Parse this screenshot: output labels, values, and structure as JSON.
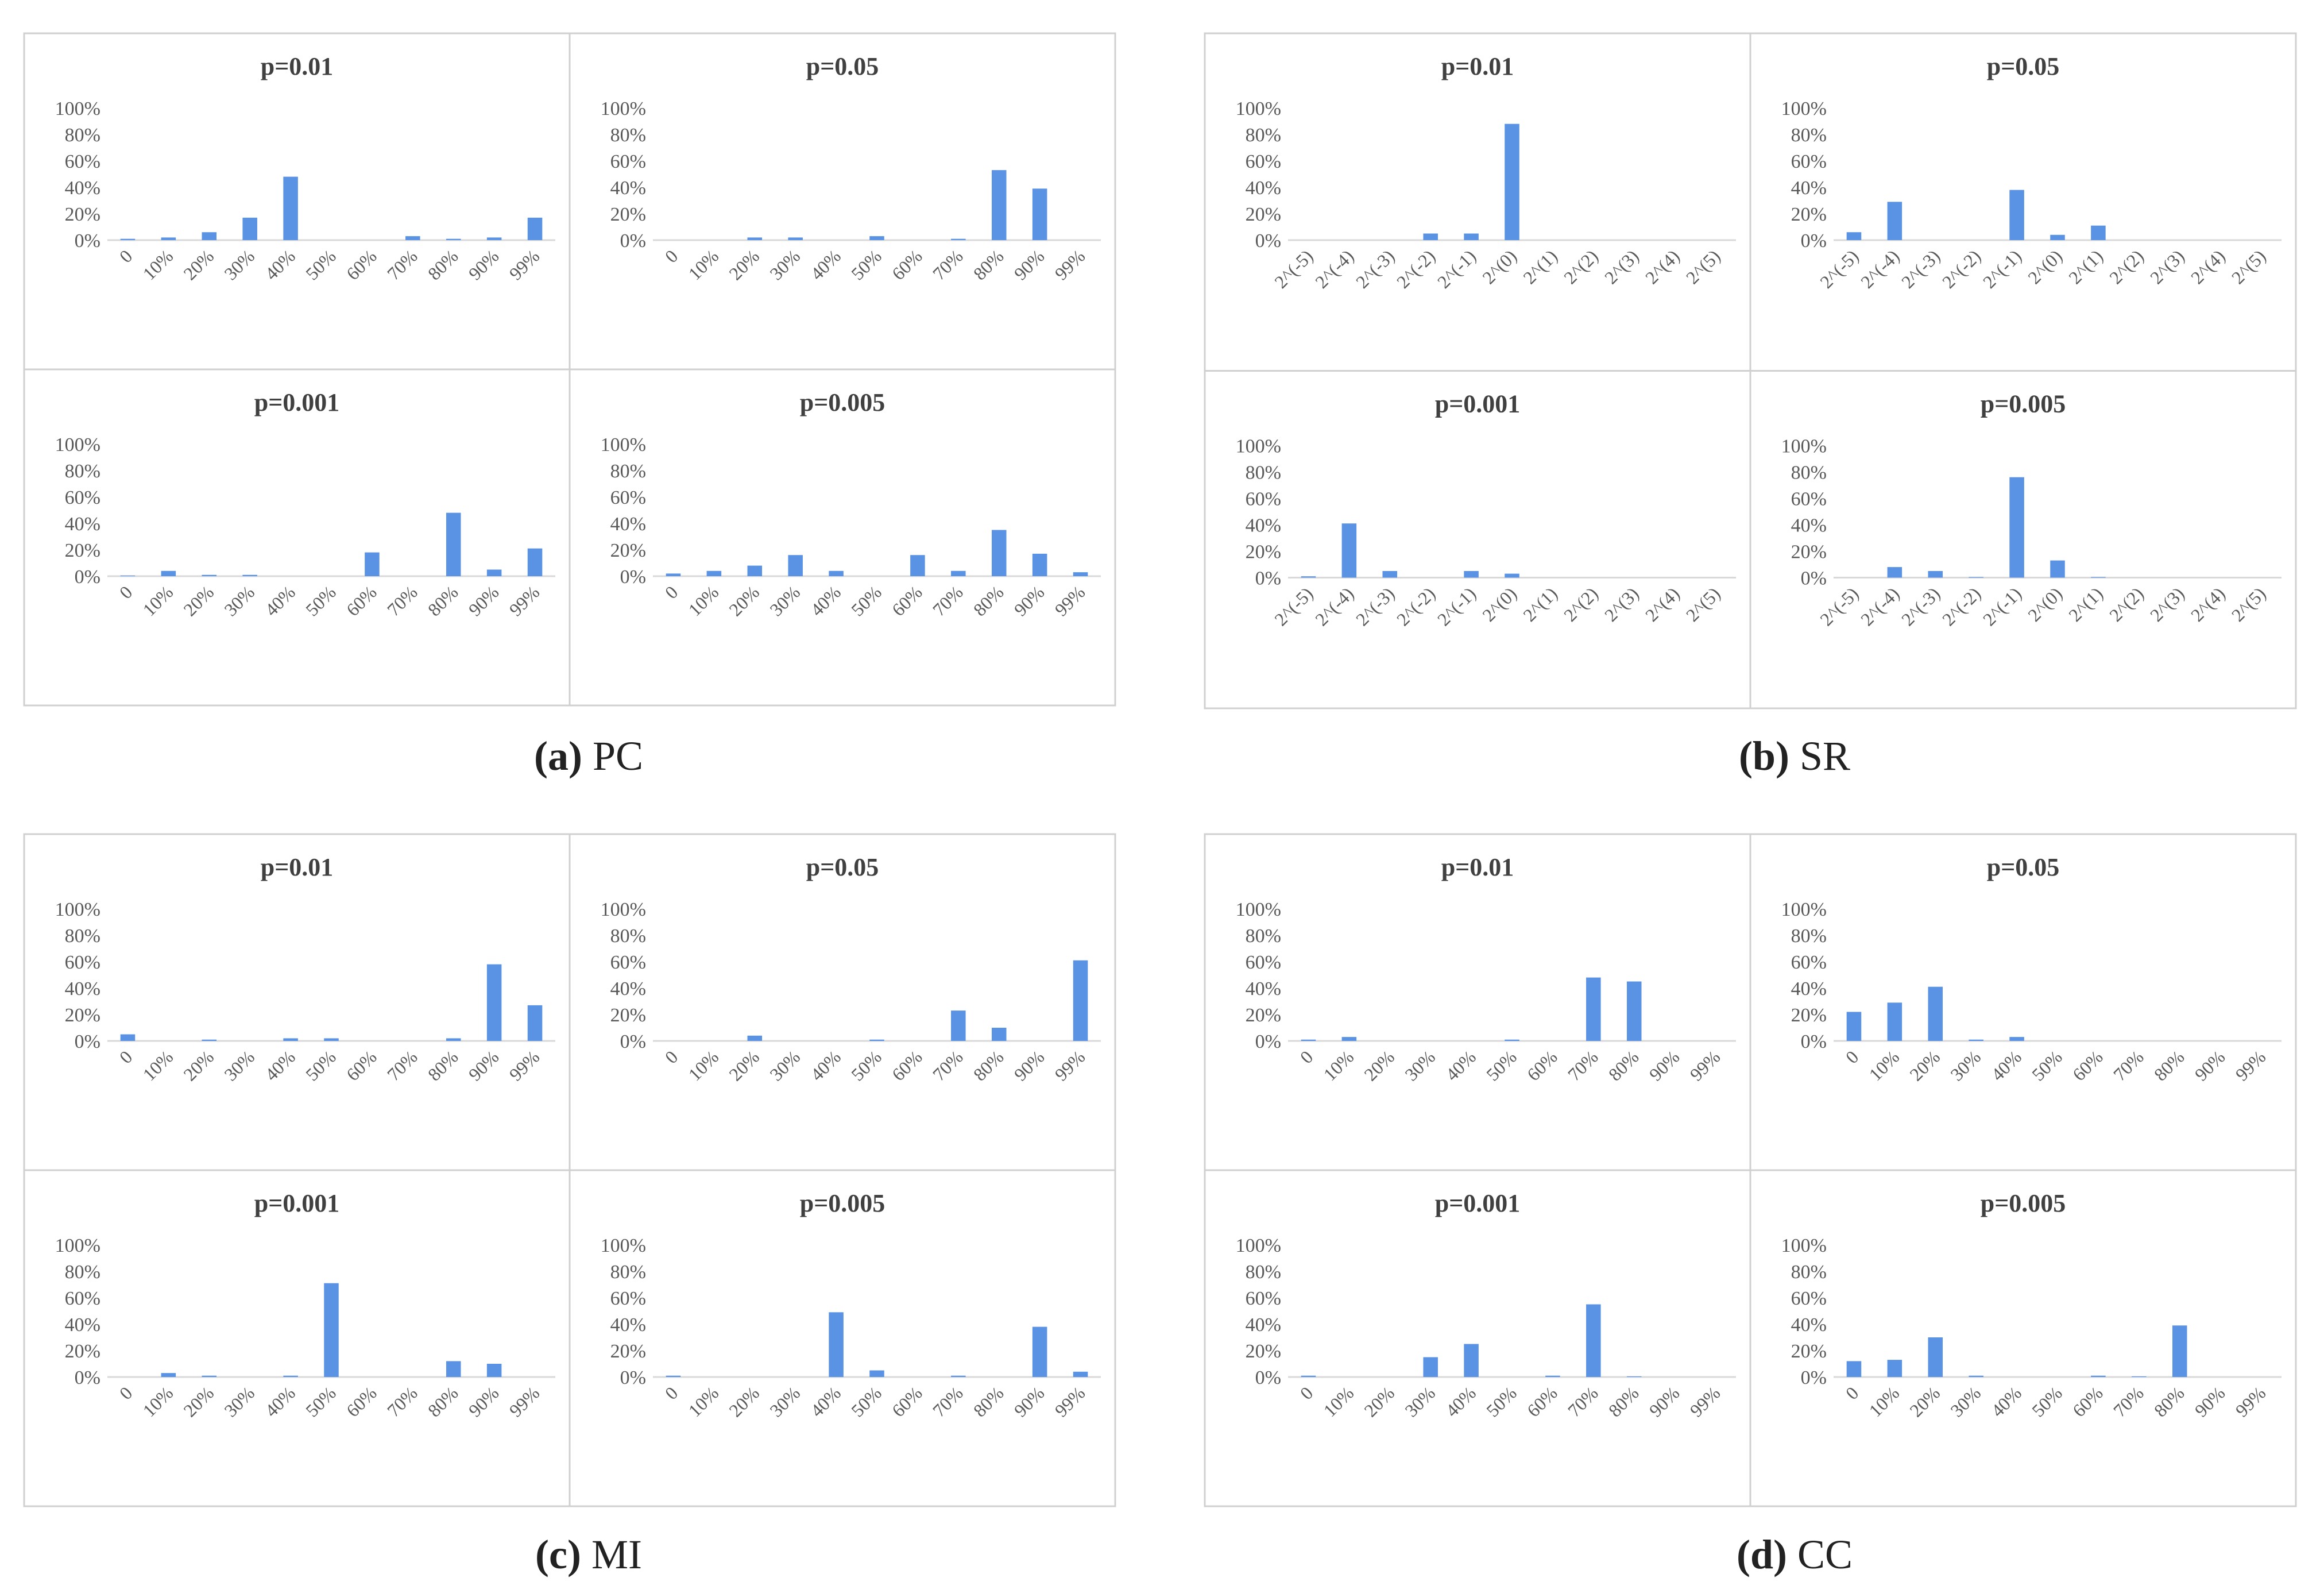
{
  "colors": {
    "bar": "#5b93e4",
    "axis": "#d9d9d9",
    "frame": "#d0d0d0",
    "tick_text": "#595959",
    "title": "#404040"
  },
  "y_ticks": [
    "0%",
    "20%",
    "40%",
    "60%",
    "80%",
    "100%"
  ],
  "x_categories_pct": [
    "0",
    "10%",
    "20%",
    "30%",
    "40%",
    "50%",
    "60%",
    "70%",
    "80%",
    "90%",
    "99%"
  ],
  "x_categories_pow": [
    "2^(-5)",
    "2^(-4)",
    "2^(-3)",
    "2^(-2)",
    "2^(-1)",
    "2^(0)",
    "2^(1)",
    "2^(2)",
    "2^(3)",
    "2^(4)",
    "2^(5)"
  ],
  "groups": [
    {
      "letter": "(a)",
      "name": "PC",
      "axis": "pct"
    },
    {
      "letter": "(b)",
      "name": "SR",
      "axis": "pow"
    },
    {
      "letter": "(c)",
      "name": "MI",
      "axis": "pct"
    },
    {
      "letter": "(d)",
      "name": "CC",
      "axis": "pct"
    }
  ],
  "chart_data": [
    {
      "group": "PC",
      "type": "bar",
      "title": "p=0.01",
      "ylim": [
        0,
        100
      ],
      "values": [
        1,
        2,
        6,
        17,
        48,
        0,
        0,
        3,
        1,
        2,
        17
      ]
    },
    {
      "group": "PC",
      "type": "bar",
      "title": "p=0.05",
      "ylim": [
        0,
        100
      ],
      "values": [
        0,
        0,
        2,
        2,
        0,
        3,
        0,
        1,
        53,
        39,
        0
      ]
    },
    {
      "group": "PC",
      "type": "bar",
      "title": "p=0.001",
      "ylim": [
        0,
        100
      ],
      "values": [
        0.5,
        4,
        1,
        1,
        0,
        0,
        18,
        0,
        48,
        5,
        21
      ]
    },
    {
      "group": "PC",
      "type": "bar",
      "title": "p=0.005",
      "ylim": [
        0,
        100
      ],
      "values": [
        2,
        4,
        8,
        16,
        4,
        0,
        16,
        4,
        35,
        17,
        3
      ]
    },
    {
      "group": "SR",
      "type": "bar",
      "title": "p=0.01",
      "ylim": [
        0,
        100
      ],
      "values": [
        0,
        0,
        0,
        5,
        5,
        88,
        0,
        0,
        0,
        0,
        0
      ]
    },
    {
      "group": "SR",
      "type": "bar",
      "title": "p=0.05",
      "ylim": [
        0,
        100
      ],
      "values": [
        6,
        29,
        0,
        0,
        38,
        4,
        11,
        0,
        0,
        0,
        0
      ]
    },
    {
      "group": "SR",
      "type": "bar",
      "title": "p=0.001",
      "ylim": [
        0,
        100
      ],
      "values": [
        1,
        41,
        5,
        0,
        5,
        3,
        0,
        0,
        0,
        0,
        0
      ]
    },
    {
      "group": "SR",
      "type": "bar",
      "title": "p=0.005",
      "ylim": [
        0,
        100
      ],
      "values": [
        0,
        8,
        5,
        0.5,
        76,
        13,
        0.5,
        0,
        0,
        0,
        0
      ]
    },
    {
      "group": "MI",
      "type": "bar",
      "title": "p=0.01",
      "ylim": [
        0,
        100
      ],
      "values": [
        5,
        0,
        1,
        0,
        2,
        2,
        0,
        0,
        2,
        58,
        27
      ]
    },
    {
      "group": "MI",
      "type": "bar",
      "title": "p=0.05",
      "ylim": [
        0,
        100
      ],
      "values": [
        0,
        0,
        4,
        0,
        0,
        1,
        0,
        23,
        10,
        0,
        61
      ]
    },
    {
      "group": "MI",
      "type": "bar",
      "title": "p=0.001",
      "ylim": [
        0,
        100
      ],
      "values": [
        0,
        3,
        1,
        0,
        1,
        71,
        0,
        0,
        12,
        10,
        0
      ]
    },
    {
      "group": "MI",
      "type": "bar",
      "title": "p=0.005",
      "ylim": [
        0,
        100
      ],
      "values": [
        1,
        0,
        0,
        0,
        49,
        5,
        0,
        1,
        0,
        38,
        4
      ]
    },
    {
      "group": "CC",
      "type": "bar",
      "title": "p=0.01",
      "ylim": [
        0,
        100
      ],
      "values": [
        1,
        3,
        0,
        0,
        0,
        1,
        0,
        48,
        45,
        0,
        0
      ]
    },
    {
      "group": "CC",
      "type": "bar",
      "title": "p=0.05",
      "ylim": [
        0,
        100
      ],
      "values": [
        22,
        29,
        41,
        1,
        3,
        0,
        0,
        0,
        0,
        0,
        0
      ]
    },
    {
      "group": "CC",
      "type": "bar",
      "title": "p=0.001",
      "ylim": [
        0,
        100
      ],
      "values": [
        1,
        0,
        0,
        15,
        25,
        0,
        1,
        55,
        0.5,
        0,
        0
      ]
    },
    {
      "group": "CC",
      "type": "bar",
      "title": "p=0.005",
      "ylim": [
        0,
        100
      ],
      "values": [
        12,
        13,
        30,
        1,
        0,
        0,
        1,
        0.5,
        39,
        0,
        0
      ]
    }
  ]
}
